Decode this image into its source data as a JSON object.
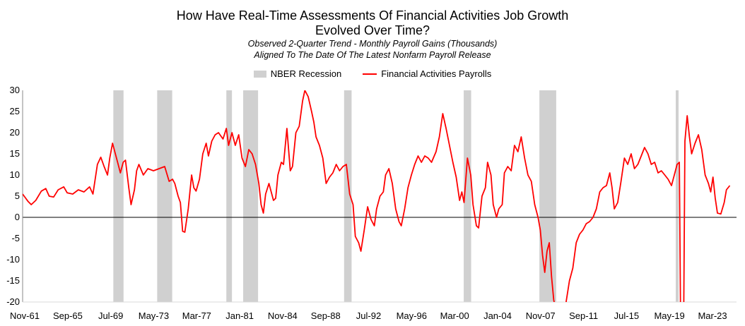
{
  "title": "How Have Real-Time Assessments Of Financial Activities Job Growth",
  "title_line2": "Evolved Over Time?",
  "subtitle1": "Observed 2-Quarter Trend - Monthly Payroll Gains (Thousands)",
  "subtitle2": "Aligned To The Date Of The Latest Nonfarm Payroll Release",
  "colors": {
    "line": "#ff0000",
    "recession": "#d0d0d0",
    "axis": "#000000",
    "grid": "#d9d9d9"
  },
  "chart_data": {
    "type": "line",
    "title": "How Have Real-Time Assessments Of Financial Activities Job Growth Evolved Over Time?",
    "xlabel": "",
    "ylabel": "",
    "ylim": [
      -20,
      30
    ],
    "yticks": [
      30,
      25,
      20,
      15,
      10,
      5,
      0,
      -5,
      -10,
      -15,
      -20
    ],
    "xlim": [
      1961.83,
      2025.5
    ],
    "xticks": [
      {
        "label": "Nov-61",
        "year": 1961.83
      },
      {
        "label": "Sep-65",
        "year": 1965.67
      },
      {
        "label": "Jul-69",
        "year": 1969.5
      },
      {
        "label": "May-73",
        "year": 1973.33
      },
      {
        "label": "Mar-77",
        "year": 1977.17
      },
      {
        "label": "Jan-81",
        "year": 1981.0
      },
      {
        "label": "Nov-84",
        "year": 1984.83
      },
      {
        "label": "Sep-88",
        "year": 1988.67
      },
      {
        "label": "Jul-92",
        "year": 1992.5
      },
      {
        "label": "May-96",
        "year": 1996.33
      },
      {
        "label": "Mar-00",
        "year": 2000.17
      },
      {
        "label": "Jan-04",
        "year": 2004.0
      },
      {
        "label": "Nov-07",
        "year": 2007.83
      },
      {
        "label": "Sep-11",
        "year": 2011.67
      },
      {
        "label": "Jul-15",
        "year": 2015.5
      },
      {
        "label": "May-19",
        "year": 2019.33
      },
      {
        "label": "Mar-23",
        "year": 2023.17
      }
    ],
    "legend": [
      {
        "name": "NBER Recession",
        "kind": "area"
      },
      {
        "name": "Financial Activities Payrolls",
        "kind": "line"
      }
    ],
    "legend_position": "top-center",
    "grid": false,
    "recessions": [
      [
        1969.92,
        1970.83
      ],
      [
        1973.83,
        1975.17
      ],
      [
        1980.0,
        1980.5
      ],
      [
        1981.5,
        1982.83
      ],
      [
        1990.5,
        1991.17
      ],
      [
        2001.17,
        2001.83
      ],
      [
        2007.92,
        2009.42
      ],
      [
        2020.08,
        2020.33
      ]
    ],
    "series": [
      {
        "name": "Financial Activities Payrolls",
        "points": [
          [
            1961.83,
            5.5
          ],
          [
            1962.3,
            3.8
          ],
          [
            1962.6,
            3.0
          ],
          [
            1963.0,
            4.0
          ],
          [
            1963.5,
            6.2
          ],
          [
            1963.9,
            6.8
          ],
          [
            1964.2,
            5.0
          ],
          [
            1964.6,
            4.8
          ],
          [
            1965.0,
            6.5
          ],
          [
            1965.5,
            7.2
          ],
          [
            1965.8,
            5.8
          ],
          [
            1966.3,
            5.5
          ],
          [
            1966.8,
            6.5
          ],
          [
            1967.3,
            6.0
          ],
          [
            1967.8,
            7.2
          ],
          [
            1968.1,
            5.5
          ],
          [
            1968.5,
            12.5
          ],
          [
            1968.8,
            14.2
          ],
          [
            1969.1,
            12.0
          ],
          [
            1969.4,
            10.0
          ],
          [
            1969.6,
            14.0
          ],
          [
            1969.85,
            17.5
          ],
          [
            1970.1,
            15.0
          ],
          [
            1970.3,
            13.0
          ],
          [
            1970.55,
            10.5
          ],
          [
            1970.8,
            13.0
          ],
          [
            1971.0,
            13.5
          ],
          [
            1971.3,
            7.0
          ],
          [
            1971.5,
            3.0
          ],
          [
            1971.8,
            6.5
          ],
          [
            1972.0,
            11.0
          ],
          [
            1972.2,
            12.5
          ],
          [
            1972.6,
            10.0
          ],
          [
            1973.0,
            11.5
          ],
          [
            1973.5,
            11.0
          ],
          [
            1974.0,
            11.5
          ],
          [
            1974.5,
            12.0
          ],
          [
            1974.9,
            8.5
          ],
          [
            1975.2,
            9.0
          ],
          [
            1975.4,
            8.0
          ],
          [
            1975.7,
            5.0
          ],
          [
            1975.9,
            3.5
          ],
          [
            1976.1,
            -3.3
          ],
          [
            1976.3,
            -3.5
          ],
          [
            1976.6,
            2.0
          ],
          [
            1976.9,
            10.0
          ],
          [
            1977.1,
            7.0
          ],
          [
            1977.3,
            6.2
          ],
          [
            1977.6,
            9.0
          ],
          [
            1977.9,
            15.0
          ],
          [
            1978.2,
            17.5
          ],
          [
            1978.4,
            14.5
          ],
          [
            1978.7,
            18.0
          ],
          [
            1979.0,
            19.5
          ],
          [
            1979.3,
            20.0
          ],
          [
            1979.7,
            18.5
          ],
          [
            1980.0,
            21.0
          ],
          [
            1980.2,
            17.0
          ],
          [
            1980.5,
            20.0
          ],
          [
            1980.8,
            17.0
          ],
          [
            1981.1,
            19.5
          ],
          [
            1981.4,
            14.0
          ],
          [
            1981.7,
            12.0
          ],
          [
            1982.0,
            16.0
          ],
          [
            1982.3,
            15.0
          ],
          [
            1982.6,
            12.5
          ],
          [
            1982.9,
            8.0
          ],
          [
            1983.1,
            3.0
          ],
          [
            1983.3,
            1.0
          ],
          [
            1983.5,
            5.5
          ],
          [
            1983.8,
            8.0
          ],
          [
            1984.0,
            6.0
          ],
          [
            1984.2,
            4.0
          ],
          [
            1984.4,
            4.5
          ],
          [
            1984.6,
            10.0
          ],
          [
            1984.9,
            13.0
          ],
          [
            1985.1,
            12.5
          ],
          [
            1985.4,
            21.0
          ],
          [
            1985.7,
            11.0
          ],
          [
            1985.9,
            12.0
          ],
          [
            1986.2,
            20.0
          ],
          [
            1986.5,
            21.5
          ],
          [
            1986.8,
            27.5
          ],
          [
            1987.0,
            30.0
          ],
          [
            1987.3,
            28.5
          ],
          [
            1987.6,
            25.0
          ],
          [
            1987.8,
            22.5
          ],
          [
            1988.0,
            19.0
          ],
          [
            1988.3,
            17.0
          ],
          [
            1988.6,
            14.0
          ],
          [
            1988.9,
            8.0
          ],
          [
            1989.2,
            9.5
          ],
          [
            1989.5,
            10.5
          ],
          [
            1989.8,
            12.5
          ],
          [
            1990.1,
            11.0
          ],
          [
            1990.4,
            12.0
          ],
          [
            1990.7,
            12.5
          ],
          [
            1991.0,
            5.5
          ],
          [
            1991.3,
            3.0
          ],
          [
            1991.5,
            -4.5
          ],
          [
            1991.8,
            -6.0
          ],
          [
            1992.0,
            -8.0
          ],
          [
            1992.3,
            -3.0
          ],
          [
            1992.6,
            2.5
          ],
          [
            1992.9,
            -0.5
          ],
          [
            1993.2,
            -2.0
          ],
          [
            1993.4,
            2.0
          ],
          [
            1993.7,
            5.0
          ],
          [
            1994.0,
            6.0
          ],
          [
            1994.2,
            10.0
          ],
          [
            1994.5,
            11.5
          ],
          [
            1994.8,
            8.0
          ],
          [
            1995.1,
            2.0
          ],
          [
            1995.4,
            -1.0
          ],
          [
            1995.6,
            -2.0
          ],
          [
            1995.9,
            2.0
          ],
          [
            1996.2,
            7.0
          ],
          [
            1996.5,
            10.0
          ],
          [
            1996.8,
            12.5
          ],
          [
            1997.1,
            14.5
          ],
          [
            1997.4,
            13.0
          ],
          [
            1997.7,
            14.5
          ],
          [
            1998.0,
            14.0
          ],
          [
            1998.3,
            13.0
          ],
          [
            1998.7,
            15.5
          ],
          [
            1999.0,
            19.0
          ],
          [
            1999.3,
            24.5
          ],
          [
            1999.6,
            21.0
          ],
          [
            1999.9,
            17.0
          ],
          [
            2000.2,
            13.0
          ],
          [
            2000.5,
            9.5
          ],
          [
            2000.8,
            4.0
          ],
          [
            2001.0,
            6.0
          ],
          [
            2001.2,
            3.5
          ],
          [
            2001.5,
            14.0
          ],
          [
            2001.8,
            10.0
          ],
          [
            2002.0,
            3.0
          ],
          [
            2002.3,
            -2.0
          ],
          [
            2002.5,
            -2.5
          ],
          [
            2002.8,
            5.0
          ],
          [
            2003.1,
            7.0
          ],
          [
            2003.3,
            13.0
          ],
          [
            2003.6,
            10.0
          ],
          [
            2003.8,
            3.0
          ],
          [
            2004.1,
            0.0
          ],
          [
            2004.3,
            2.0
          ],
          [
            2004.6,
            3.0
          ],
          [
            2004.8,
            10.5
          ],
          [
            2005.1,
            12.0
          ],
          [
            2005.4,
            11.0
          ],
          [
            2005.7,
            17.0
          ],
          [
            2006.0,
            15.5
          ],
          [
            2006.3,
            19.0
          ],
          [
            2006.6,
            14.0
          ],
          [
            2006.9,
            10.0
          ],
          [
            2007.2,
            8.5
          ],
          [
            2007.5,
            3.0
          ],
          [
            2007.8,
            0.0
          ],
          [
            2008.0,
            -3.0
          ],
          [
            2008.2,
            -9.0
          ],
          [
            2008.4,
            -13.0
          ],
          [
            2008.6,
            -8.0
          ],
          [
            2008.8,
            -6.0
          ],
          [
            2009.0,
            -14.0
          ],
          [
            2009.2,
            -19.5
          ],
          [
            2009.35,
            -21.5
          ],
          [
            2009.7,
            -22.5
          ],
          [
            2010.0,
            -23.0
          ],
          [
            2010.3,
            -20.0
          ],
          [
            2010.6,
            -15.0
          ],
          [
            2010.9,
            -12.0
          ],
          [
            2011.2,
            -6.0
          ],
          [
            2011.5,
            -4.0
          ],
          [
            2011.8,
            -3.0
          ],
          [
            2012.1,
            -1.5
          ],
          [
            2012.4,
            -1.0
          ],
          [
            2012.7,
            0.0
          ],
          [
            2013.0,
            2.0
          ],
          [
            2013.3,
            6.0
          ],
          [
            2013.6,
            7.0
          ],
          [
            2013.9,
            7.5
          ],
          [
            2014.2,
            10.5
          ],
          [
            2014.4,
            7.0
          ],
          [
            2014.6,
            2.0
          ],
          [
            2014.9,
            3.5
          ],
          [
            2015.2,
            8.5
          ],
          [
            2015.5,
            14.0
          ],
          [
            2015.8,
            12.5
          ],
          [
            2016.1,
            15.0
          ],
          [
            2016.4,
            11.5
          ],
          [
            2016.7,
            12.5
          ],
          [
            2017.0,
            14.5
          ],
          [
            2017.3,
            16.5
          ],
          [
            2017.6,
            15.0
          ],
          [
            2017.9,
            12.5
          ],
          [
            2018.2,
            13.0
          ],
          [
            2018.5,
            10.5
          ],
          [
            2018.8,
            11.0
          ],
          [
            2019.1,
            10.0
          ],
          [
            2019.4,
            9.0
          ],
          [
            2019.7,
            7.5
          ],
          [
            2020.0,
            10.5
          ],
          [
            2020.2,
            12.5
          ],
          [
            2020.4,
            13.0
          ],
          [
            2020.5,
            -20.5
          ],
          [
            2020.8,
            -20.5
          ],
          [
            2020.9,
            18.0
          ],
          [
            2021.1,
            24.0
          ],
          [
            2021.3,
            19.0
          ],
          [
            2021.5,
            15.0
          ],
          [
            2021.8,
            17.5
          ],
          [
            2022.1,
            19.5
          ],
          [
            2022.4,
            16.0
          ],
          [
            2022.7,
            10.0
          ],
          [
            2023.0,
            8.0
          ],
          [
            2023.2,
            6.0
          ],
          [
            2023.4,
            9.5
          ],
          [
            2023.6,
            4.5
          ],
          [
            2023.8,
            1.0
          ],
          [
            2024.1,
            0.8
          ],
          [
            2024.4,
            3.5
          ],
          [
            2024.6,
            6.5
          ],
          [
            2024.9,
            7.5
          ]
        ]
      }
    ]
  }
}
